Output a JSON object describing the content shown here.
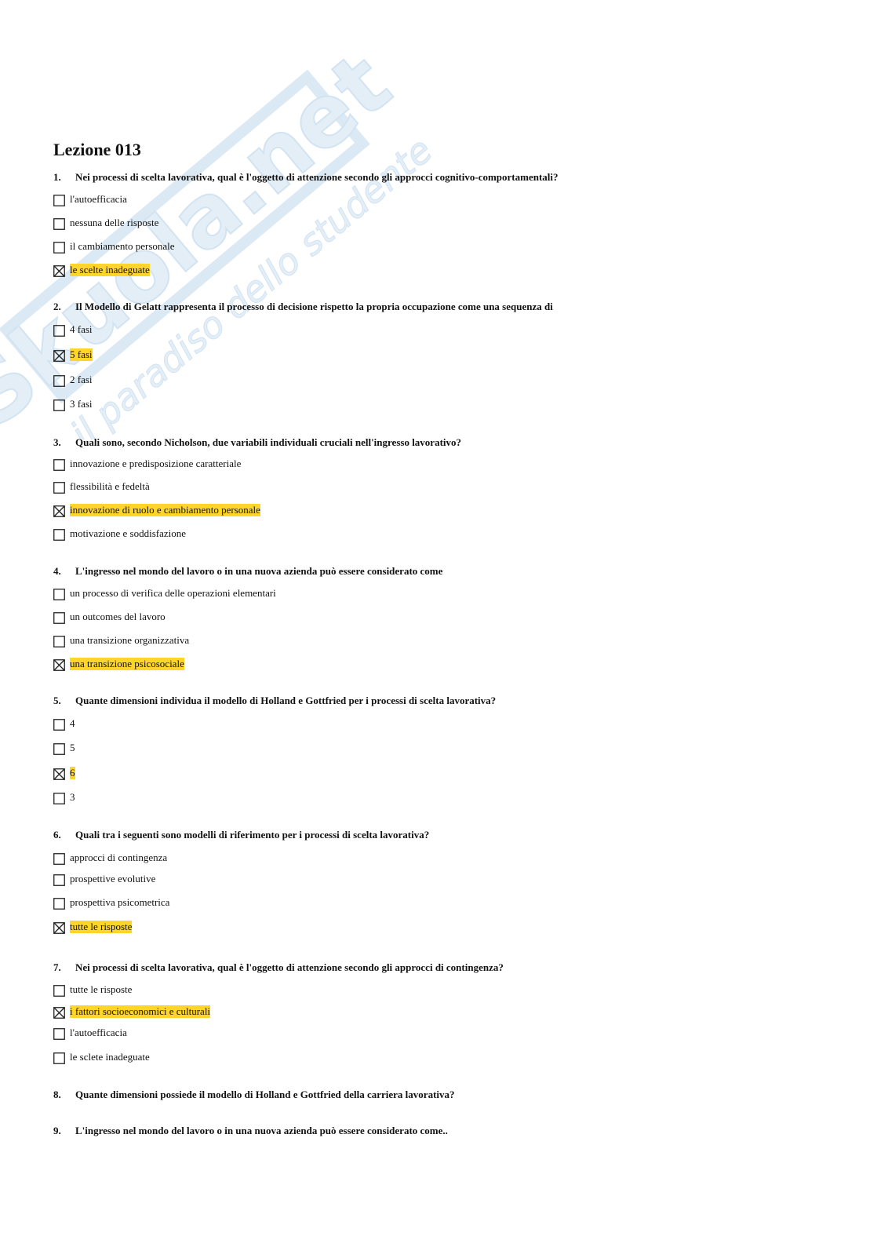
{
  "watermark": {
    "brand": "Skuola.net",
    "tagline": "il paradiso dello studente"
  },
  "title": "Lezione 013",
  "questions": [
    {
      "number": "1.",
      "text": "Nei processi di scelta lavorativa, qual è l'oggetto di attenzione secondo gli approcci  cognitivo-comportamentali?",
      "options": [
        {
          "text": "l'autoefficacia",
          "checked": false
        },
        {
          "text": "nessuna delle risposte",
          "checked": false
        },
        {
          "text": "il cambiamento personale",
          "checked": false
        },
        {
          "text": "le scelte inadeguate",
          "checked": true
        }
      ]
    },
    {
      "number": "2.",
      "text": "Il Modello di Gelatt rappresenta il processo di decisione rispetto la propria occupazione come una sequenza di",
      "options": [
        {
          "text": "4  fasi",
          "checked": false
        },
        {
          "text": "5  fasi",
          "checked": true
        },
        {
          "text": "2 fasi",
          "checked": false
        },
        {
          "text": "3 fasi",
          "checked": false
        }
      ]
    },
    {
      "number": "3.",
      "text": "Quali sono, secondo Nicholson, due variabili individuali cruciali nell'ingresso lavorativo?",
      "options": [
        {
          "text": "innovazione e predisposizione caratteriale",
          "checked": false
        },
        {
          "text": "flessibilità e fedeltà",
          "checked": false
        },
        {
          "text": "innovazione di ruolo e cambiamento personale",
          "checked": true
        },
        {
          "text": "motivazione e soddisfazione",
          "checked": false
        }
      ]
    },
    {
      "number": "4.",
      "text": "L'ingresso nel mondo del lavoro o in una nuova azienda può essere considerato come",
      "options": [
        {
          "text": "un processo di verifica delle operazioni elementari",
          "checked": false
        },
        {
          "text": "un outcomes del lavoro",
          "checked": false
        },
        {
          "text": "una transizione organizzativa",
          "checked": false
        },
        {
          "text": "una transizione psicosociale",
          "checked": true
        }
      ]
    },
    {
      "number": "5.",
      "text": "Quante dimensioni individua il modello di Holland e Gottfried per i processi di scelta lavorativa?",
      "options": [
        {
          "text": "4",
          "checked": false
        },
        {
          "text": "5",
          "checked": false
        },
        {
          "text": "6",
          "checked": true
        },
        {
          "text": "3",
          "checked": false
        }
      ]
    },
    {
      "number": "6.",
      "text": "Quali tra i seguenti sono modelli di riferimento per i processi di scelta lavorativa?",
      "options": [
        {
          "text": "approcci di contingenza",
          "checked": false
        },
        {
          "text": "prospettive evolutive",
          "checked": false
        },
        {
          "text": "prospettiva psicometrica",
          "checked": false
        },
        {
          "text": "tutte le risposte",
          "checked": true
        }
      ]
    },
    {
      "number": "7.",
      "text": "Nei processi di scelta lavorativa, qual è l'oggetto di attenzione secondo gli approcci di contingenza?",
      "options": [
        {
          "text": "tutte le risposte",
          "checked": false
        },
        {
          "text": "i fattori socioeconomici e culturali",
          "checked": true
        },
        {
          "text": "l'autoefficacia",
          "checked": false
        },
        {
          "text": "le sclete inadeguate",
          "checked": false
        }
      ]
    },
    {
      "number": "8.",
      "text": "Quante dimensioni possiede il modello di Holland e Gottfried della carriera lavorativa?",
      "options": []
    },
    {
      "number": "9.",
      "text": "L'ingresso nel mondo del lavoro o in una nuova azienda può essere considerato come..",
      "options": []
    }
  ]
}
